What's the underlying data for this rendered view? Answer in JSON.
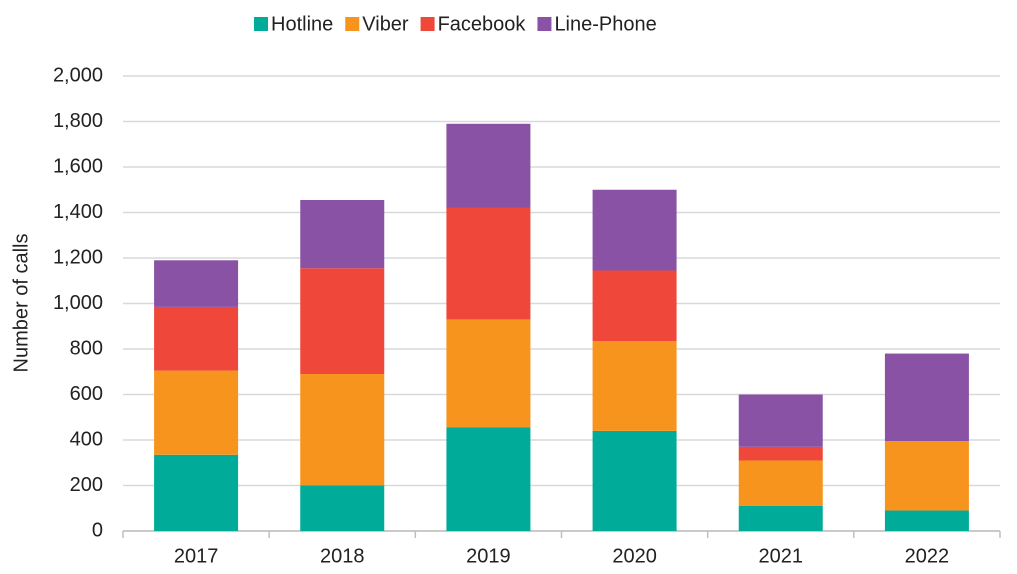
{
  "chart_data": {
    "type": "stacked-bar",
    "y_label": "Number of calls",
    "categories": [
      "2017",
      "2018",
      "2019",
      "2020",
      "2021",
      "2022"
    ],
    "series": [
      {
        "name": "Hotline",
        "color": "#00ab99",
        "values": [
          335,
          200,
          455,
          440,
          110,
          90
        ]
      },
      {
        "name": "Viber",
        "color": "#f7941d",
        "values": [
          370,
          490,
          475,
          395,
          200,
          305
        ]
      },
      {
        "name": "Facebook",
        "color": "#ef473a",
        "values": [
          280,
          465,
          490,
          310,
          60,
          0
        ]
      },
      {
        "name": "Line-Phone",
        "color": "#8a52a5",
        "values": [
          205,
          300,
          370,
          355,
          230,
          385
        ]
      }
    ],
    "ylim": [
      0,
      2000
    ],
    "yticks": [
      0,
      200,
      400,
      600,
      800,
      {
        "value": 1000,
        "label": "1,000"
      },
      {
        "value": 1200,
        "label": "1,200"
      },
      {
        "value": 1400,
        "label": "1,400"
      },
      {
        "value": 1600,
        "label": "1,600"
      },
      {
        "value": 1800,
        "label": "1,800"
      },
      {
        "value": 2000,
        "label": "2,000"
      }
    ],
    "grid": true,
    "legend": "top"
  }
}
